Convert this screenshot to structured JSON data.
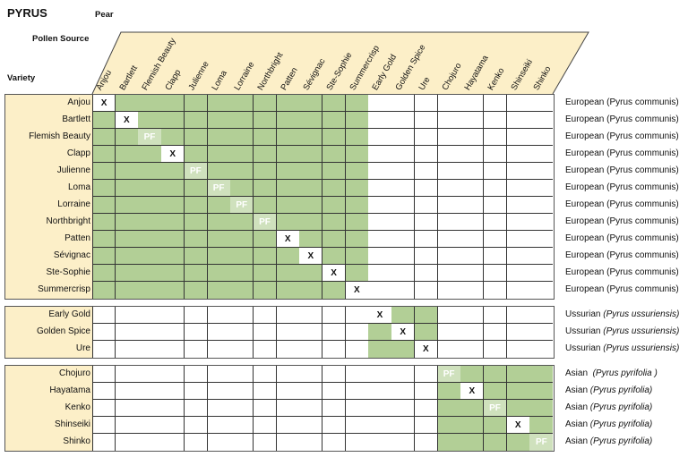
{
  "title": "PYRUS",
  "subtitle": "Pear",
  "pollen_source_label": "Pollen Source",
  "variety_label": "Variety",
  "colors": {
    "compatible": "#b2cf96",
    "partial": "#cfe1bd",
    "header": "#fcefc8"
  },
  "columns": [
    "Anjou",
    "Bartlett",
    "Flemish Beauty",
    "Clapp",
    "Julienne",
    "Loma",
    "Lorraine",
    "Northbright",
    "Patten",
    "Sévignac",
    "Ste-Sophie",
    "Summercrisp",
    "Early Gold",
    "Golden Spice",
    "Ure",
    "Chojuro",
    "Hayatama",
    "Kenko",
    "Shinseiki",
    "Shinko"
  ],
  "groups": [
    {
      "name": "European",
      "cols": [
        0,
        11
      ],
      "rows": [
        {
          "variety": "Anjou",
          "mark": "X",
          "species": "European (Pyrus communis)",
          "italic": ""
        },
        {
          "variety": "Bartlett",
          "mark": "X",
          "species": "European (Pyrus communis)",
          "italic": ""
        },
        {
          "variety": "Flemish Beauty",
          "mark": "PF",
          "species": "European (Pyrus communis)",
          "italic": ""
        },
        {
          "variety": "Clapp",
          "mark": "X",
          "species": "European (Pyrus communis)",
          "italic": ""
        },
        {
          "variety": "Julienne",
          "mark": "PF",
          "species": "European (Pyrus communis)",
          "italic": ""
        },
        {
          "variety": "Loma",
          "mark": "PF",
          "species": "European (Pyrus communis)",
          "italic": ""
        },
        {
          "variety": "Lorraine",
          "mark": "PF",
          "species": "European (Pyrus communis)",
          "italic": ""
        },
        {
          "variety": "Northbright",
          "mark": "PF",
          "species": "European (Pyrus communis)",
          "italic": ""
        },
        {
          "variety": "Patten",
          "mark": "X",
          "species": "European (Pyrus communis)",
          "italic": ""
        },
        {
          "variety": "Sévignac",
          "mark": "X",
          "species": "European (Pyrus communis)",
          "italic": ""
        },
        {
          "variety": "Ste-Sophie",
          "mark": "X",
          "species": "European (Pyrus communis)",
          "italic": ""
        },
        {
          "variety": "Summercrisp",
          "mark": "X",
          "species": "European (Pyrus communis)",
          "italic": ""
        }
      ]
    },
    {
      "name": "Ussurian",
      "cols": [
        12,
        14
      ],
      "rows": [
        {
          "variety": "Early Gold",
          "mark": "X",
          "species": "Ussurian ",
          "italic": "(Pyrus ussuriensis)"
        },
        {
          "variety": "Golden Spice",
          "mark": "X",
          "species": "Ussurian ",
          "italic": "(Pyrus ussuriensis)"
        },
        {
          "variety": "Ure",
          "mark": "X",
          "species": "Ussurian ",
          "italic": "(Pyrus ussuriensis)"
        }
      ]
    },
    {
      "name": "Asian",
      "cols": [
        15,
        19
      ],
      "rows": [
        {
          "variety": "Chojuro",
          "mark": "PF",
          "species": "Asian  ",
          "italic": "(Pyrus pyrifolia )"
        },
        {
          "variety": "Hayatama",
          "mark": "X",
          "species": "Asian ",
          "italic": "(Pyrus pyrifolia)"
        },
        {
          "variety": "Kenko",
          "mark": "PF",
          "species": "Asian ",
          "italic": "(Pyrus pyrifolia)"
        },
        {
          "variety": "Shinseiki",
          "mark": "X",
          "species": "Asian ",
          "italic": "(Pyrus pyrifolia)"
        },
        {
          "variety": "Shinko",
          "mark": "PF",
          "species": "Asian ",
          "italic": "(Pyrus pyrifolia)"
        }
      ]
    }
  ]
}
